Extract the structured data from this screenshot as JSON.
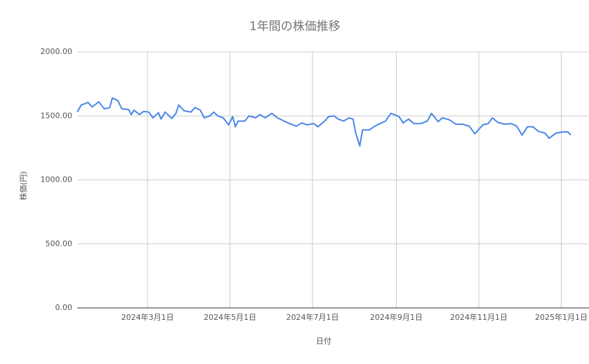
{
  "chart_data": {
    "type": "line",
    "title": "1年間の株価推移",
    "x_label": "日付",
    "y_label": "株価(円)",
    "x": [
      "2024-01-09",
      "2024-01-12",
      "2024-01-17",
      "2024-01-20",
      "2024-01-25",
      "2024-01-29",
      "2024-02-02",
      "2024-02-04",
      "2024-02-08",
      "2024-02-11",
      "2024-02-16",
      "2024-02-18",
      "2024-02-20",
      "2024-02-24",
      "2024-02-27",
      "2024-03-02",
      "2024-03-05",
      "2024-03-09",
      "2024-03-11",
      "2024-03-14",
      "2024-03-19",
      "2024-03-22",
      "2024-03-24",
      "2024-03-28",
      "2024-04-02",
      "2024-04-05",
      "2024-04-09",
      "2024-04-12",
      "2024-04-16",
      "2024-04-19",
      "2024-04-22",
      "2024-04-26",
      "2024-04-30",
      "2024-05-03",
      "2024-05-05",
      "2024-05-07",
      "2024-05-12",
      "2024-05-15",
      "2024-05-20",
      "2024-05-23",
      "2024-05-27",
      "2024-06-01",
      "2024-06-05",
      "2024-06-10",
      "2024-06-14",
      "2024-06-19",
      "2024-06-23",
      "2024-06-27",
      "2024-07-02",
      "2024-07-05",
      "2024-07-10",
      "2024-07-13",
      "2024-07-17",
      "2024-07-20",
      "2024-07-24",
      "2024-07-28",
      "2024-07-31",
      "2024-08-02",
      "2024-08-05",
      "2024-08-07",
      "2024-08-12",
      "2024-08-16",
      "2024-08-20",
      "2024-08-24",
      "2024-08-28",
      "2024-09-03",
      "2024-09-06",
      "2024-09-10",
      "2024-09-14",
      "2024-09-19",
      "2024-09-24",
      "2024-09-27",
      "2024-10-02",
      "2024-10-05",
      "2024-10-10",
      "2024-10-15",
      "2024-10-20",
      "2024-10-25",
      "2024-10-29",
      "2024-11-04",
      "2024-11-08",
      "2024-11-11",
      "2024-11-15",
      "2024-11-20",
      "2024-11-25",
      "2024-11-29",
      "2024-12-03",
      "2024-12-07",
      "2024-12-11",
      "2024-12-15",
      "2024-12-20",
      "2024-12-23",
      "2024-12-28",
      "2025-01-02",
      "2025-01-06",
      "2025-01-08"
    ],
    "series": [
      {
        "name": "株価",
        "color": "#4a86e8",
        "values": [
          1530,
          1585,
          1605,
          1570,
          1610,
          1555,
          1565,
          1640,
          1620,
          1555,
          1550,
          1510,
          1545,
          1510,
          1535,
          1530,
          1485,
          1525,
          1475,
          1530,
          1480,
          1520,
          1585,
          1540,
          1530,
          1565,
          1545,
          1485,
          1500,
          1530,
          1500,
          1485,
          1430,
          1495,
          1415,
          1460,
          1460,
          1500,
          1485,
          1510,
          1485,
          1520,
          1485,
          1460,
          1440,
          1420,
          1445,
          1430,
          1440,
          1415,
          1460,
          1495,
          1500,
          1475,
          1460,
          1485,
          1475,
          1365,
          1265,
          1390,
          1390,
          1420,
          1440,
          1460,
          1520,
          1495,
          1445,
          1475,
          1440,
          1440,
          1460,
          1520,
          1455,
          1485,
          1470,
          1435,
          1435,
          1420,
          1360,
          1430,
          1440,
          1485,
          1450,
          1435,
          1440,
          1420,
          1350,
          1415,
          1415,
          1380,
          1365,
          1325,
          1365,
          1375,
          1375,
          1350
        ]
      }
    ],
    "xlim": [
      "2024-01-09",
      "2025-01-08"
    ],
    "xticks": [
      {
        "value": "2024-03-01",
        "label": "2024年3月1日"
      },
      {
        "value": "2024-05-01",
        "label": "2024年5月1日"
      },
      {
        "value": "2024-07-01",
        "label": "2024年7月1日"
      },
      {
        "value": "2024-09-01",
        "label": "2024年9月1日"
      },
      {
        "value": "2024-11-01",
        "label": "2024年11月1日"
      },
      {
        "value": "2025-01-01",
        "label": "2025年1月1日"
      }
    ],
    "ylim": [
      0,
      2000
    ],
    "yticks": [
      {
        "value": 0,
        "label": "0.00"
      },
      {
        "value": 500,
        "label": "500.00"
      },
      {
        "value": 1000,
        "label": "1000.00"
      },
      {
        "value": 1500,
        "label": "1500.00"
      },
      {
        "value": 2000,
        "label": "2000.00"
      }
    ],
    "grid": true
  }
}
